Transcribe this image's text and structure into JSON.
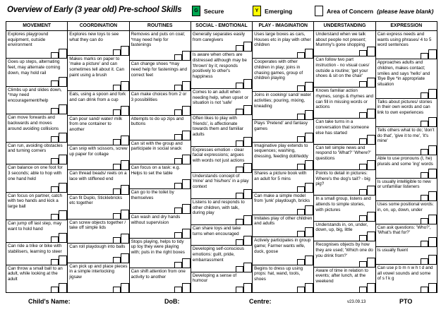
{
  "title": "Overview of Early (3 year old) Pre-school Skills",
  "legend": {
    "secure": {
      "key": "G",
      "label": "Secure",
      "color": "#00A651"
    },
    "emerging": {
      "key": "Y",
      "label": "Emerging",
      "color": "#FFFF00"
    },
    "concern": {
      "label": "Area of Concern",
      "note": "(please leave blank)",
      "color": "#FFFFFF"
    }
  },
  "table": {
    "columns": [
      {
        "header": "MOVEMENT",
        "items": [
          "Explores playground equipment, outside environment",
          "Goes up steps, alternating feet, may alternate coming down, may hold rail",
          "Climbs up and slides down, *may need encouragement/help",
          "Can move forwards and backwards and moves around avoiding collisions",
          "Can run, avoiding obstacles and turning corners",
          "Can balance on one foot for 3 seconds; able to hop with one hand held",
          "Can focus on partner,  catch with two hands and kick a large ball",
          "Can jump off last step, may want to hold hand",
          "Can ride a trike or bike with stabilisers, learning to steer",
          "Can throw a small ball to an adult, while looking at the adult"
        ]
      },
      {
        "header": "COORDINATION",
        "items": [
          "Explores new toys to see what they can do",
          "Makes marks on paper to 'make a picture' and can sometimes tell about it. Can paint using a brush",
          "Eats, using a spoon and fork and can drink from a cup",
          "Can pour sand/ water/ milk from one container to another",
          "Can snip with scissors, screw up paper for collage",
          "Can thread beads/ reels on a lace with stiffened end",
          "Can fit Duplo, Sticklebricks etc together",
          "Can screw objects together / take off simple  lids",
          "Can roll playdough into balls",
          "Can pick up and place pieces in a simple interlocking jigsaw"
        ]
      },
      {
        "header": "ROUTINES",
        "items": [
          "Removes and puts on coat; *may need help for fastenings",
          "Can change shoes *may need help for fastenings and correct feet",
          "Can make choices from 2 or 3 possibilities",
          "Attempts to do up zips and buttons",
          "Can sit with the group and participate in social snack",
          "Can focus on a task: e.g. Helps to set the table",
          "Can go to the toilet by themselves",
          "Can wash and dry hands without supervision",
          "Stops playing,  helps to tidy up toy they were playing with; puts in the right boxes",
          "Can shift attention from one activity to another"
        ]
      },
      {
        "header": "SOCIAL - EMOTIONAL",
        "items": [
          "Generally separates easily from caregivers",
          "Is aware when others are distressed although may be 'thrown' by it; responds positively to other's happiness",
          "Comes to an adult when needing help,  when upset or situation is not 'safe'",
          "Often likes to play with 'friends', is affectionate towards them and familiar adults",
          "Expresses emotion - clear facial expressions; argues with words not just actions",
          "Understands concept of 'mine' and 'his/hers' in a play context",
          "Listens to and responds to other children, with talk, during play",
          "Can share toys and take turns when encouraged",
          "Developing self-conscious emotions: guilt, pride, embarrassment",
          "Developing a sense of humour"
        ]
      },
      {
        "header": "PLAY - IMAGINATION",
        "items": [
          "Uses large boxes as cars, Houses etc in play with other children",
          "Cooperates with other children in play; joins in chasing games, group of children playing",
          "Joins in cooking/ sand/ water activities; pouring, mixing, kneading",
          "Plays 'Pretend' and fantasy games",
          "Imaginative play extends to sequences; washing, dressing, feeding doll/teddy",
          "Shares a picture book with an adult for 5 mins",
          "Can make a simple model from 'junk' playdough, bricks",
          "Imitates play of other children and adults",
          "Actively participates in group game; Farmer wants wife, duck, goose",
          "Begins to dress up using props: hat, wand, tools, shoes"
        ]
      },
      {
        "header": "UNDERSTANDING",
        "items": [
          "Understand when we talk about people not present; Mummy's gone shopping",
          "Can follow two part instruction - no visual cues/ outside a routine; 'get your shoes & sit on the chair'",
          "Knows familiar action rhymes, songs & rhymes and can fill in missing words or actions",
          "Can take turns in a conversation that someone else has started",
          "Can tell simple news and respond to 'What?' 'Where?' questions",
          "Points to detail in pictures: Where's the dog's tail? - big pig?",
          "In a small group, listens and attends to simple stories, with pictures",
          "Understands in, on, under, down, up, big, little",
          "Recognises objects by how they are used; 'Which one do you drink from?'",
          "Aware of time in relation to events; after lunch, at the weekend"
        ]
      },
      {
        "header": "EXPRESSION",
        "items": [
          "Can express needs and wants using phrases/  4 to 5 word sentences",
          "Approaches adults and children, makes contact; smiles and says 'hello' and 'Bye Bye *in appropriate situation",
          "Talks about pictures/ stories in their own words and can link to own experiences",
          "Tells others what to do; 'don't do that', 'give it to me', 'it's mine'",
          "Able to use pronouns (I, he) plurals and some 'ing' words",
          "Is usually intelligible to new or unfamiliar listeners",
          "Uses some positional words: in, on, up, down, under",
          "Can ask questions: 'Who?', 'What's that for?'",
          "Is usually fluent",
          "Can use p b m n w h t d and all vowel sounds and some of s f k g"
        ]
      }
    ]
  },
  "footer": {
    "child_name_label": "Child's Name:",
    "dob_label": "DoB:",
    "centre_label": "Centre:",
    "version": "v23.09.13",
    "pto": "PTO"
  }
}
